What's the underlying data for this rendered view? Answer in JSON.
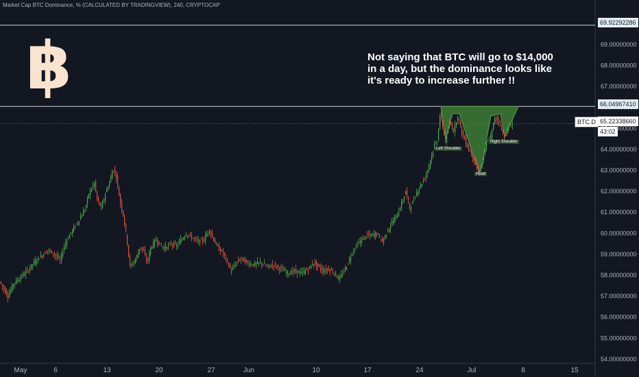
{
  "header": {
    "title": "Market Cap BTC Dominance, % (CALCULATED BY TRADINGVIEW), 240, CRYPTOCAP"
  },
  "annotation": {
    "lines": [
      "Not saying that BTC will go to $14,000",
      "in a day, but the dominance looks like",
      "it's ready to increase further !!"
    ]
  },
  "logo": {
    "symbol": "฿",
    "color": "#fbe4cf"
  },
  "pattern": {
    "left_shoulder": "Left Shoulder",
    "head": "Head",
    "right_shoulder": "Right Shoulder",
    "fill": "#3d7a34"
  },
  "levels": {
    "top_line": "69.92292286",
    "neckline": "66.04967410",
    "current_price": "65.22338660",
    "symbol": "BTC.D",
    "countdown": "43:02"
  },
  "colors": {
    "background": "#131722",
    "up": "#26a69a",
    "down": "#ef5350",
    "up_wick": "#3e8e3a"
  },
  "chart_data": {
    "type": "candlestick",
    "title": "Market Cap BTC Dominance, %",
    "timeframe": "240",
    "ylim": [
      53.8,
      70.6
    ],
    "y_ticks": [
      "54.00000000",
      "55.00000000",
      "56.00000000",
      "57.00000000",
      "58.00000000",
      "59.00000000",
      "60.00000000",
      "61.00000000",
      "62.00000000",
      "63.00000000",
      "64.00000000",
      "65.00000000",
      "66.00000000",
      "67.00000000",
      "68.00000000",
      "69.00000000"
    ],
    "x_ticks": [
      "May",
      "6",
      "13",
      "20",
      "27",
      "Jun",
      "10",
      "17",
      "24",
      "Jul",
      "8",
      "15"
    ],
    "grid": false,
    "series": [
      {
        "name": "BTC.D",
        "path": [
          [
            0,
            57.7
          ],
          [
            5,
            57.4
          ],
          [
            12,
            57.0
          ],
          [
            20,
            57.6
          ],
          [
            30,
            57.9
          ],
          [
            40,
            58.2
          ],
          [
            50,
            58.6
          ],
          [
            60,
            58.9
          ],
          [
            70,
            59.2
          ],
          [
            80,
            59.0
          ],
          [
            88,
            58.7
          ],
          [
            95,
            59.5
          ],
          [
            105,
            60.1
          ],
          [
            115,
            60.6
          ],
          [
            125,
            61.2
          ],
          [
            130,
            61.9
          ],
          [
            138,
            62.4
          ],
          [
            142,
            61.6
          ],
          [
            148,
            61.2
          ],
          [
            155,
            62.0
          ],
          [
            160,
            62.4
          ],
          [
            165,
            63.1
          ],
          [
            170,
            62.7
          ],
          [
            175,
            61.6
          ],
          [
            180,
            60.9
          ],
          [
            185,
            59.8
          ],
          [
            190,
            58.4
          ],
          [
            195,
            58.6
          ],
          [
            200,
            58.9
          ],
          [
            205,
            59.4
          ],
          [
            210,
            59.1
          ],
          [
            215,
            58.6
          ],
          [
            220,
            59.3
          ],
          [
            228,
            59.7
          ],
          [
            235,
            59.4
          ],
          [
            242,
            59.3
          ],
          [
            250,
            59.5
          ],
          [
            258,
            59.4
          ],
          [
            265,
            59.7
          ],
          [
            272,
            60.0
          ],
          [
            280,
            59.8
          ],
          [
            290,
            59.6
          ],
          [
            298,
            59.7
          ],
          [
            305,
            60.2
          ],
          [
            312,
            59.7
          ],
          [
            318,
            59.3
          ],
          [
            325,
            59.1
          ],
          [
            332,
            58.6
          ],
          [
            338,
            58.2
          ],
          [
            345,
            58.6
          ],
          [
            352,
            58.8
          ],
          [
            360,
            58.6
          ],
          [
            370,
            58.5
          ],
          [
            380,
            58.6
          ],
          [
            390,
            58.4
          ],
          [
            400,
            58.5
          ],
          [
            410,
            58.3
          ],
          [
            420,
            58.1
          ],
          [
            430,
            58.2
          ],
          [
            440,
            58.1
          ],
          [
            450,
            58.3
          ],
          [
            458,
            58.6
          ],
          [
            465,
            58.4
          ],
          [
            472,
            58.2
          ],
          [
            480,
            58.3
          ],
          [
            488,
            58.1
          ],
          [
            495,
            57.8
          ],
          [
            502,
            58.2
          ],
          [
            508,
            58.6
          ],
          [
            514,
            59.1
          ],
          [
            520,
            59.4
          ],
          [
            528,
            59.7
          ],
          [
            535,
            59.9
          ],
          [
            542,
            59.9
          ],
          [
            550,
            60.0
          ],
          [
            558,
            59.6
          ],
          [
            565,
            60.1
          ],
          [
            572,
            60.5
          ],
          [
            580,
            60.9
          ],
          [
            586,
            61.4
          ],
          [
            592,
            62.0
          ],
          [
            598,
            61.2
          ],
          [
            604,
            61.6
          ],
          [
            610,
            62.1
          ],
          [
            616,
            62.4
          ],
          [
            622,
            62.8
          ],
          [
            628,
            63.5
          ],
          [
            634,
            64.2
          ],
          [
            638,
            64.4
          ],
          [
            642,
            65.6
          ],
          [
            646,
            65.1
          ],
          [
            650,
            64.4
          ],
          [
            656,
            65.3
          ],
          [
            662,
            64.9
          ],
          [
            668,
            65.6
          ],
          [
            674,
            64.8
          ],
          [
            680,
            64.3
          ],
          [
            686,
            63.9
          ],
          [
            692,
            63.5
          ],
          [
            698,
            62.9
          ],
          [
            704,
            63.4
          ],
          [
            710,
            64.3
          ],
          [
            716,
            64.6
          ],
          [
            722,
            65.5
          ],
          [
            728,
            65.4
          ],
          [
            732,
            64.9
          ],
          [
            736,
            64.6
          ],
          [
            742,
            65.1
          ],
          [
            748,
            65.2
          ]
        ]
      }
    ]
  }
}
